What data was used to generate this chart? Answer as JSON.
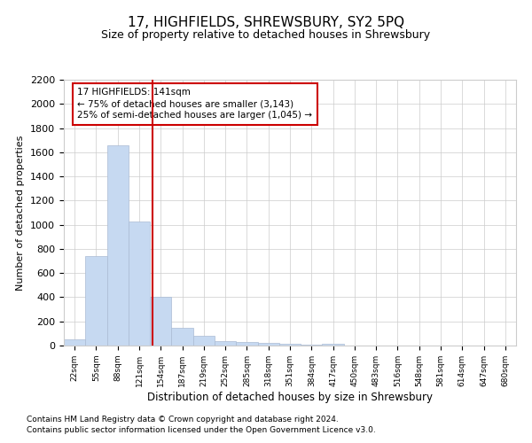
{
  "title": "17, HIGHFIELDS, SHREWSBURY, SY2 5PQ",
  "subtitle": "Size of property relative to detached houses in Shrewsbury",
  "xlabel": "Distribution of detached houses by size in Shrewsbury",
  "ylabel": "Number of detached properties",
  "footnote1": "Contains HM Land Registry data © Crown copyright and database right 2024.",
  "footnote2": "Contains public sector information licensed under the Open Government Licence v3.0.",
  "bin_labels": [
    "22sqm",
    "55sqm",
    "88sqm",
    "121sqm",
    "154sqm",
    "187sqm",
    "219sqm",
    "252sqm",
    "285sqm",
    "318sqm",
    "351sqm",
    "384sqm",
    "417sqm",
    "450sqm",
    "483sqm",
    "516sqm",
    "548sqm",
    "581sqm",
    "614sqm",
    "647sqm",
    "680sqm"
  ],
  "bar_values": [
    50,
    740,
    1660,
    1030,
    400,
    145,
    80,
    35,
    30,
    25,
    15,
    10,
    15,
    0,
    0,
    0,
    0,
    0,
    0,
    0,
    0
  ],
  "bar_color": "#c6d9f1",
  "bar_edgecolor": "#aabbd4",
  "ylim": [
    0,
    2200
  ],
  "yticks": [
    0,
    200,
    400,
    600,
    800,
    1000,
    1200,
    1400,
    1600,
    1800,
    2000,
    2200
  ],
  "vline_color": "#cc0000",
  "annotation_text": "17 HIGHFIELDS: 141sqm\n← 75% of detached houses are smaller (3,143)\n25% of semi-detached houses are larger (1,045) →",
  "annotation_box_color": "#cc0000",
  "grid_color": "#cccccc"
}
